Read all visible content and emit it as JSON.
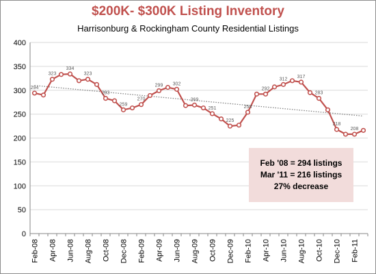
{
  "chart_data": {
    "type": "line",
    "title": "$200K- $300K Listing Inventory",
    "subtitle": "Harrisonburg & Rockingham County Residential Listings",
    "xlabel": "",
    "ylabel": "",
    "ylim": [
      0,
      400
    ],
    "yticks": [
      0,
      50,
      100,
      150,
      200,
      250,
      300,
      350,
      400
    ],
    "x_tick_labels": [
      "Feb-08",
      "Apr-08",
      "Jun-08",
      "Aug-08",
      "Oct-08",
      "Dec-08",
      "Feb-09",
      "Apr-09",
      "Jun-09",
      "Aug-09",
      "Oct-09",
      "Dec-09",
      "Feb-10",
      "Apr-10",
      "Jun-10",
      "Aug-10",
      "Oct-10",
      "Dec-10",
      "Feb-11"
    ],
    "grid": "horizontal",
    "legend": "none",
    "trendline": {
      "style": "dotted",
      "start": 310,
      "end": 246
    },
    "series": [
      {
        "color": "#c0504d",
        "values": [
          294,
          290,
          323,
          333,
          334,
          320,
          323,
          312,
          283,
          278,
          259,
          263,
          270,
          289,
          299,
          306,
          302,
          268,
          269,
          263,
          251,
          240,
          225,
          227,
          254,
          292,
          292,
          307,
          312,
          320,
          317,
          295,
          283,
          259,
          218,
          208,
          208,
          216
        ],
        "labels": [
          "294",
          "",
          "323",
          "",
          "334",
          "",
          "323",
          "",
          "283",
          "",
          "259",
          "",
          "270",
          "",
          "299",
          "",
          "302",
          "",
          "269",
          "",
          "251",
          "",
          "225",
          "",
          "254",
          "",
          "292",
          "",
          "312",
          "",
          "317",
          "",
          "283",
          "",
          "218",
          "",
          "208",
          ""
        ]
      }
    ],
    "annotation_lines": [
      "Feb '08 = 294 listings",
      "Mar '11 = 216 listings",
      "27% decrease"
    ]
  },
  "style": {
    "line_color": "#c0504d",
    "trend_color": "#808080",
    "grid_color": "#d9d9d9",
    "axis_text_color": "#000000",
    "label_text_color": "#595959"
  }
}
